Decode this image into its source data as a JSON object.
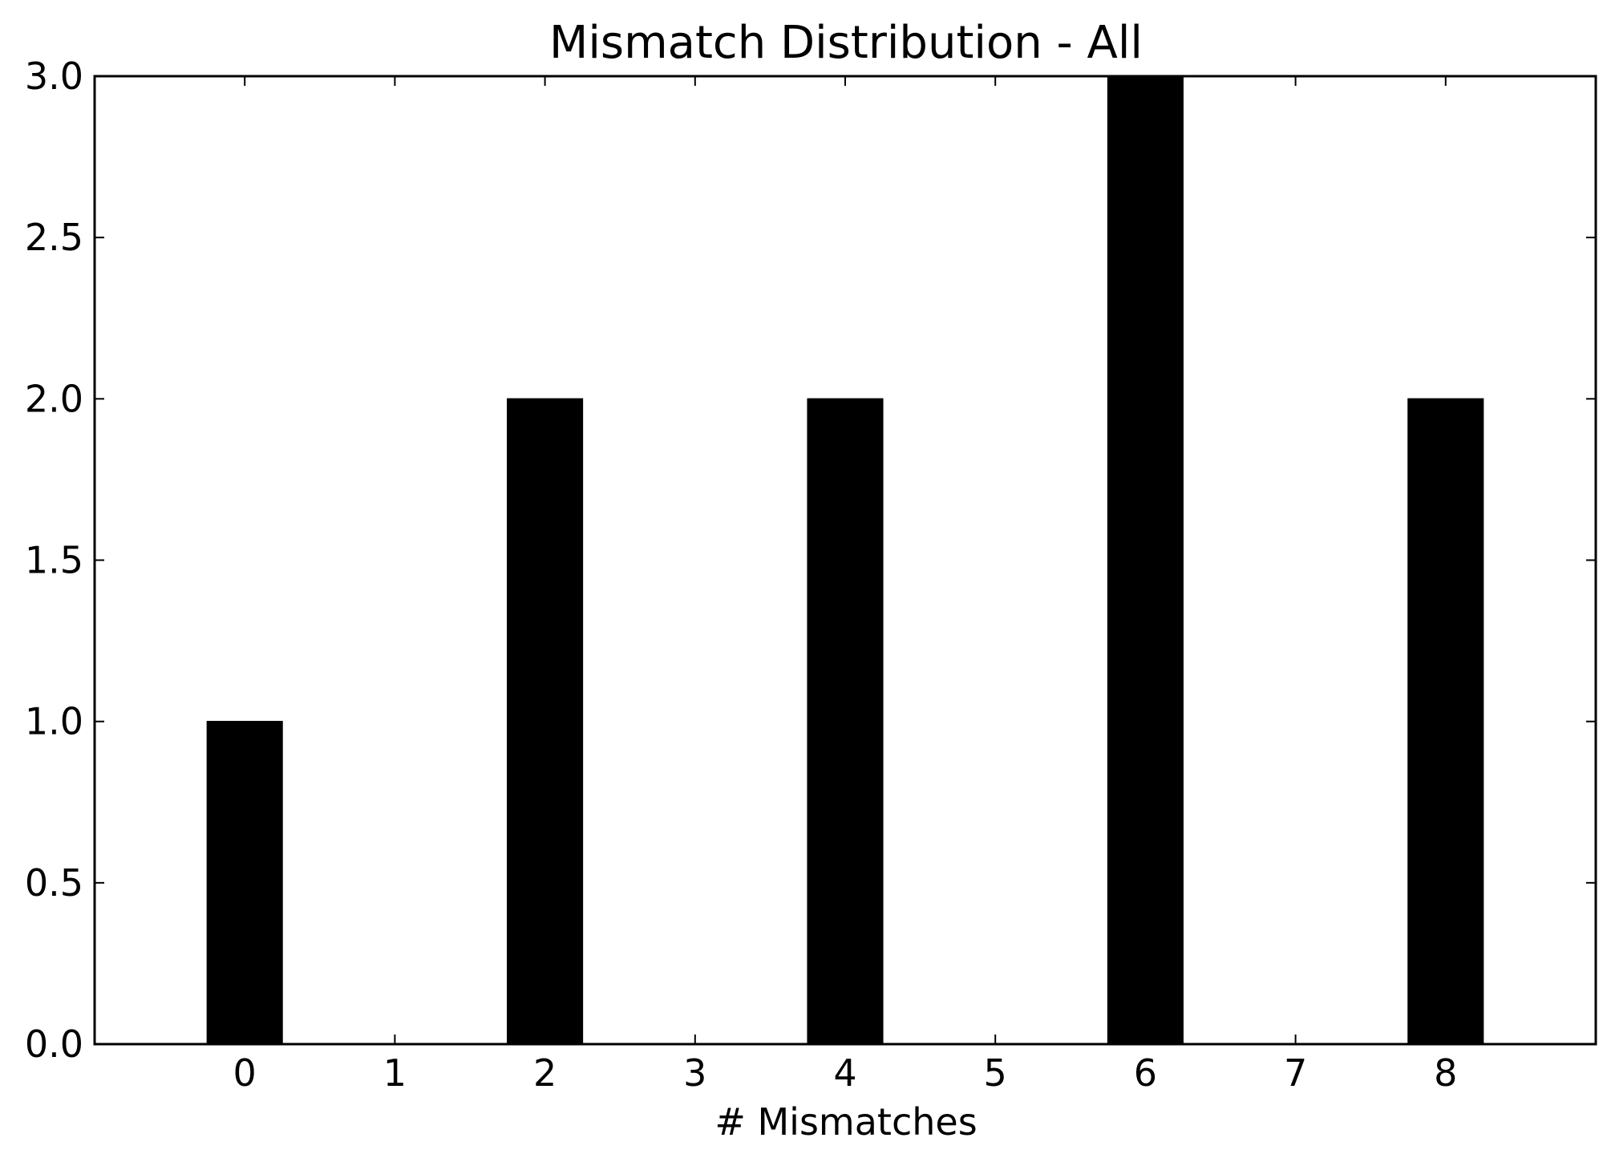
{
  "chart_data": {
    "type": "bar",
    "title": "Mismatch Distribution - All",
    "xlabel": "# Mismatches",
    "ylabel": "",
    "x_ticks": [
      "0",
      "1",
      "2",
      "3",
      "4",
      "5",
      "6",
      "7",
      "8"
    ],
    "y_ticks": [
      "0.0",
      "0.5",
      "1.0",
      "1.5",
      "2.0",
      "2.5",
      "3.0"
    ],
    "xlim": [
      -1,
      9
    ],
    "ylim": [
      0,
      3
    ],
    "bar_width": 1,
    "grid": false,
    "bar_color": "#000000",
    "series": [
      {
        "x": [
          0,
          2,
          4,
          6,
          8
        ],
        "values": [
          1,
          2,
          2,
          3,
          2
        ]
      }
    ]
  }
}
